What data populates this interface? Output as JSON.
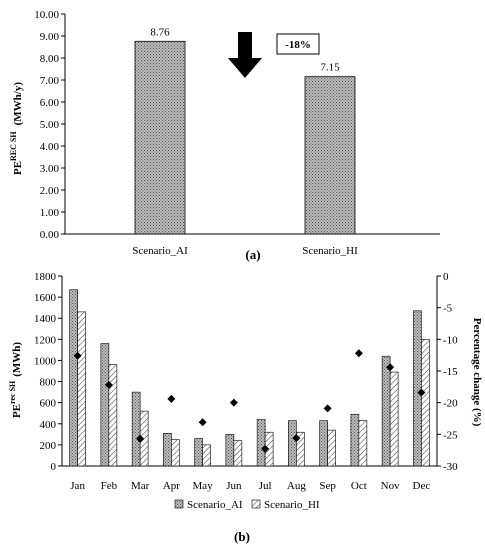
{
  "chart_data": [
    {
      "type": "bar",
      "panel_label": "(a)",
      "categories": [
        "Scenario_AI",
        "Scenario_HI"
      ],
      "values": [
        8.76,
        7.15
      ],
      "data_labels": [
        "8.76",
        "7.15"
      ],
      "ylabel_main": "PE",
      "ylabel_sup": "REC SH",
      "ylabel_unit": "(MWh/y)",
      "ylim": [
        0,
        10
      ],
      "yticks": [
        "0.00",
        "1.00",
        "2.00",
        "3.00",
        "4.00",
        "5.00",
        "6.00",
        "7.00",
        "8.00",
        "9.00",
        "10.00"
      ],
      "annotation": "-18%",
      "annotation_icon": "down-arrow-icon",
      "grid": false
    },
    {
      "type": "bar",
      "panel_label": "(b)",
      "categories": [
        "Jan",
        "Feb",
        "Mar",
        "Apr",
        "May",
        "Jun",
        "Jul",
        "Aug",
        "Sep",
        "Oct",
        "Nov",
        "Dec"
      ],
      "series": [
        {
          "name": "Scenario_AI",
          "values": [
            1670,
            1160,
            700,
            310,
            260,
            300,
            440,
            430,
            430,
            490,
            1040,
            1470
          ]
        },
        {
          "name": "Scenario_HI",
          "values": [
            1460,
            960,
            520,
            250,
            200,
            240,
            320,
            320,
            340,
            430,
            890,
            1200
          ]
        }
      ],
      "percentage_change": {
        "values": [
          -12.6,
          -17.2,
          -25.7,
          -19.4,
          -23.1,
          -20.0,
          -27.3,
          -25.6,
          -20.9,
          -12.2,
          -14.4,
          -18.4
        ]
      },
      "ylabel_main": "PE",
      "ylabel_sup": "rec SH",
      "ylabel_unit": "(MWh)",
      "ylim": [
        0,
        1800
      ],
      "yticks": [
        "0",
        "200",
        "400",
        "600",
        "800",
        "1000",
        "1200",
        "1400",
        "1600",
        "1800"
      ],
      "y2label": "Percentage change (%)",
      "y2lim": [
        -30,
        0
      ],
      "y2ticks": [
        "0",
        "-5",
        "-10",
        "-15",
        "-20",
        "-25",
        "-30"
      ],
      "legend_position": "bottom",
      "grid": false
    }
  ]
}
